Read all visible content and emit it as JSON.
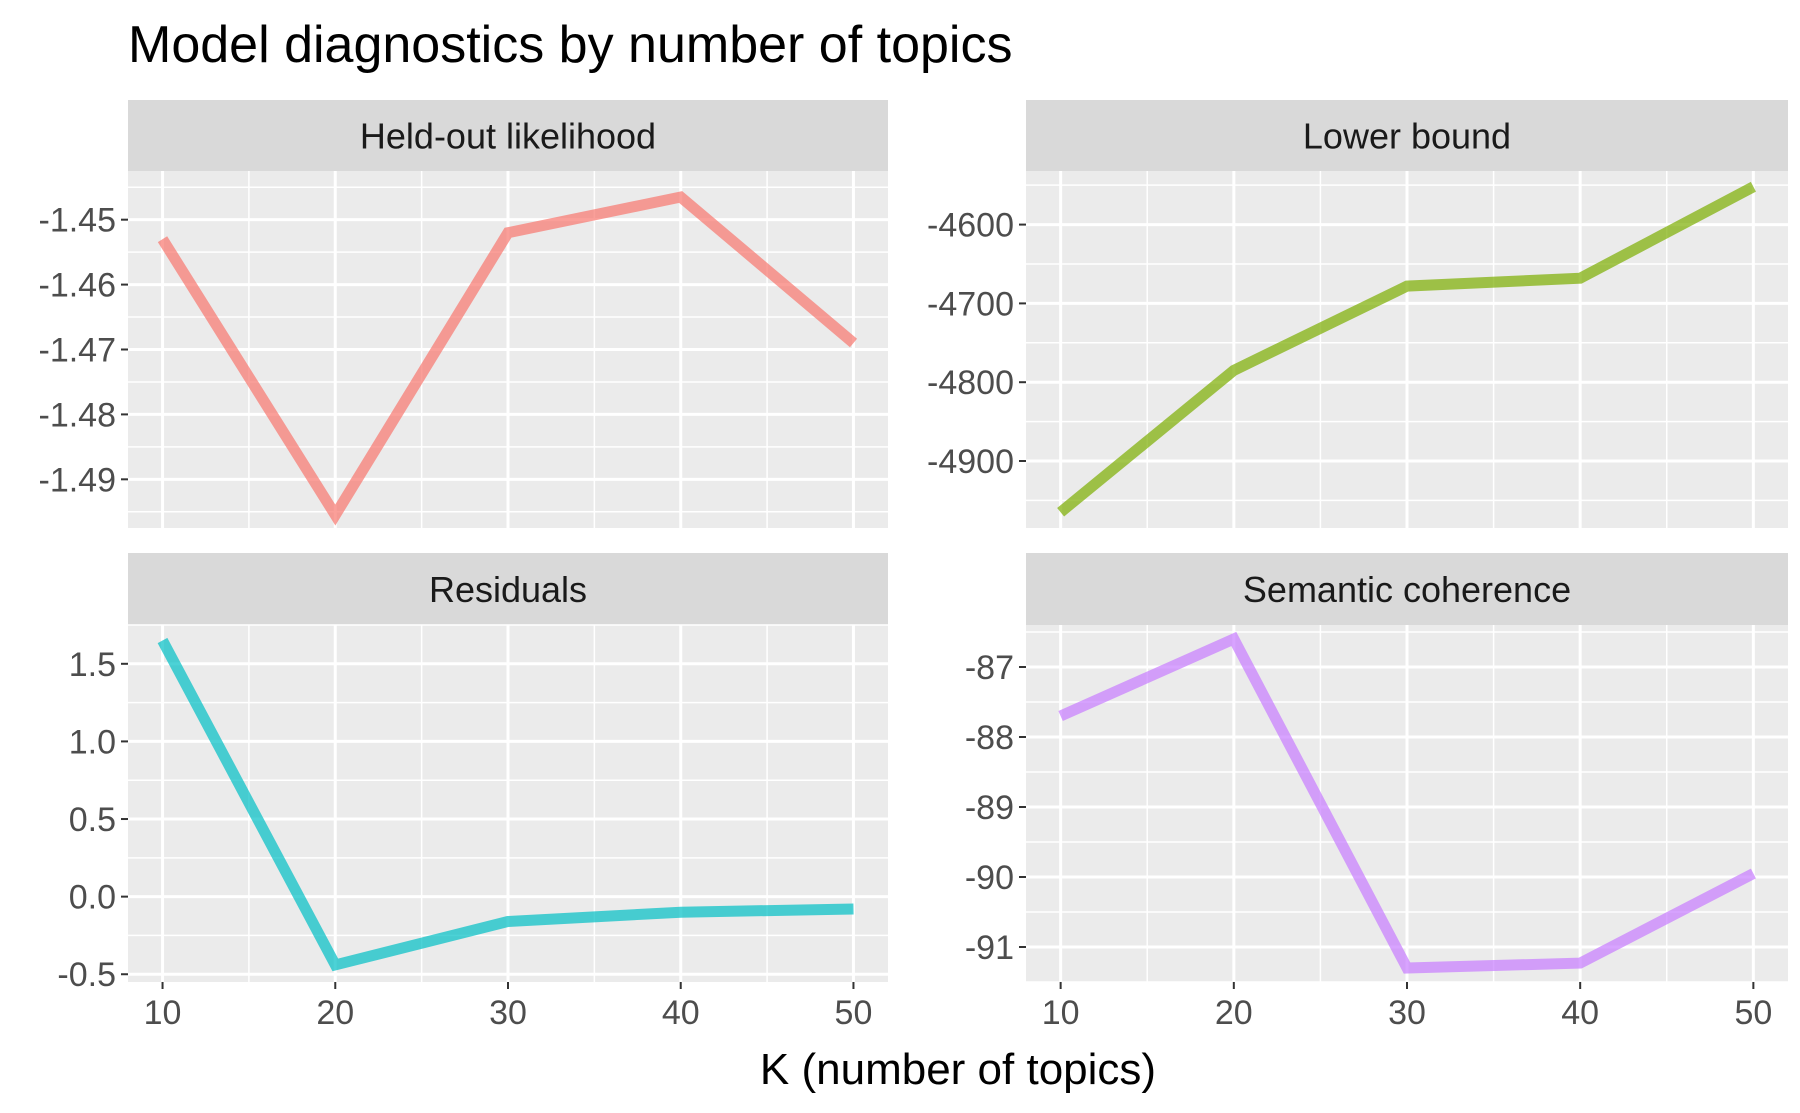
{
  "chart_data": {
    "type": "line",
    "title": "Model diagnostics by number of topics",
    "xlabel": "K (number of topics)",
    "ylabel": "",
    "x": [
      10,
      20,
      30,
      40,
      50
    ],
    "xlim": [
      8,
      52
    ],
    "grid": true,
    "legend": "none",
    "panels": [
      {
        "name": "Held-out likelihood",
        "color": "#f8766d",
        "values": [
          -1.453,
          -1.4955,
          -1.452,
          -1.4465,
          -1.469
        ],
        "ylim": [
          -1.4975,
          -1.4425
        ],
        "yticks": [
          -1.49,
          -1.48,
          -1.47,
          -1.46,
          -1.45
        ],
        "yticklabels": [
          "-1.49",
          "-1.48",
          "-1.47",
          "-1.46",
          "-1.45"
        ]
      },
      {
        "name": "Lower bound",
        "color": "#7cae00",
        "values": [
          -4965,
          -4785,
          -4678,
          -4668,
          -4552
        ],
        "ylim": [
          -4985,
          -4532
        ],
        "yticks": [
          -4900,
          -4800,
          -4700,
          -4600
        ],
        "yticklabels": [
          "-4900",
          "-4800",
          "-4700",
          "-4600"
        ]
      },
      {
        "name": "Residuals",
        "color": "#00bfc4",
        "values": [
          1.65,
          -0.44,
          -0.16,
          -0.1,
          -0.08
        ],
        "ylim": [
          -0.55,
          1.75
        ],
        "yticks": [
          -0.5,
          0.0,
          0.5,
          1.0,
          1.5
        ],
        "yticklabels": [
          "-0.5",
          "0.0",
          "0.5",
          "1.0",
          "1.5"
        ]
      },
      {
        "name": "Semantic coherence",
        "color": "#c77cff",
        "values": [
          -87.7,
          -86.6,
          -91.3,
          -91.23,
          -89.95
        ],
        "ylim": [
          -91.5,
          -86.4
        ],
        "yticks": [
          -91,
          -90,
          -89,
          -88,
          -87
        ],
        "yticklabels": [
          "-91",
          "-90",
          "-89",
          "-88",
          "-87"
        ]
      }
    ]
  }
}
